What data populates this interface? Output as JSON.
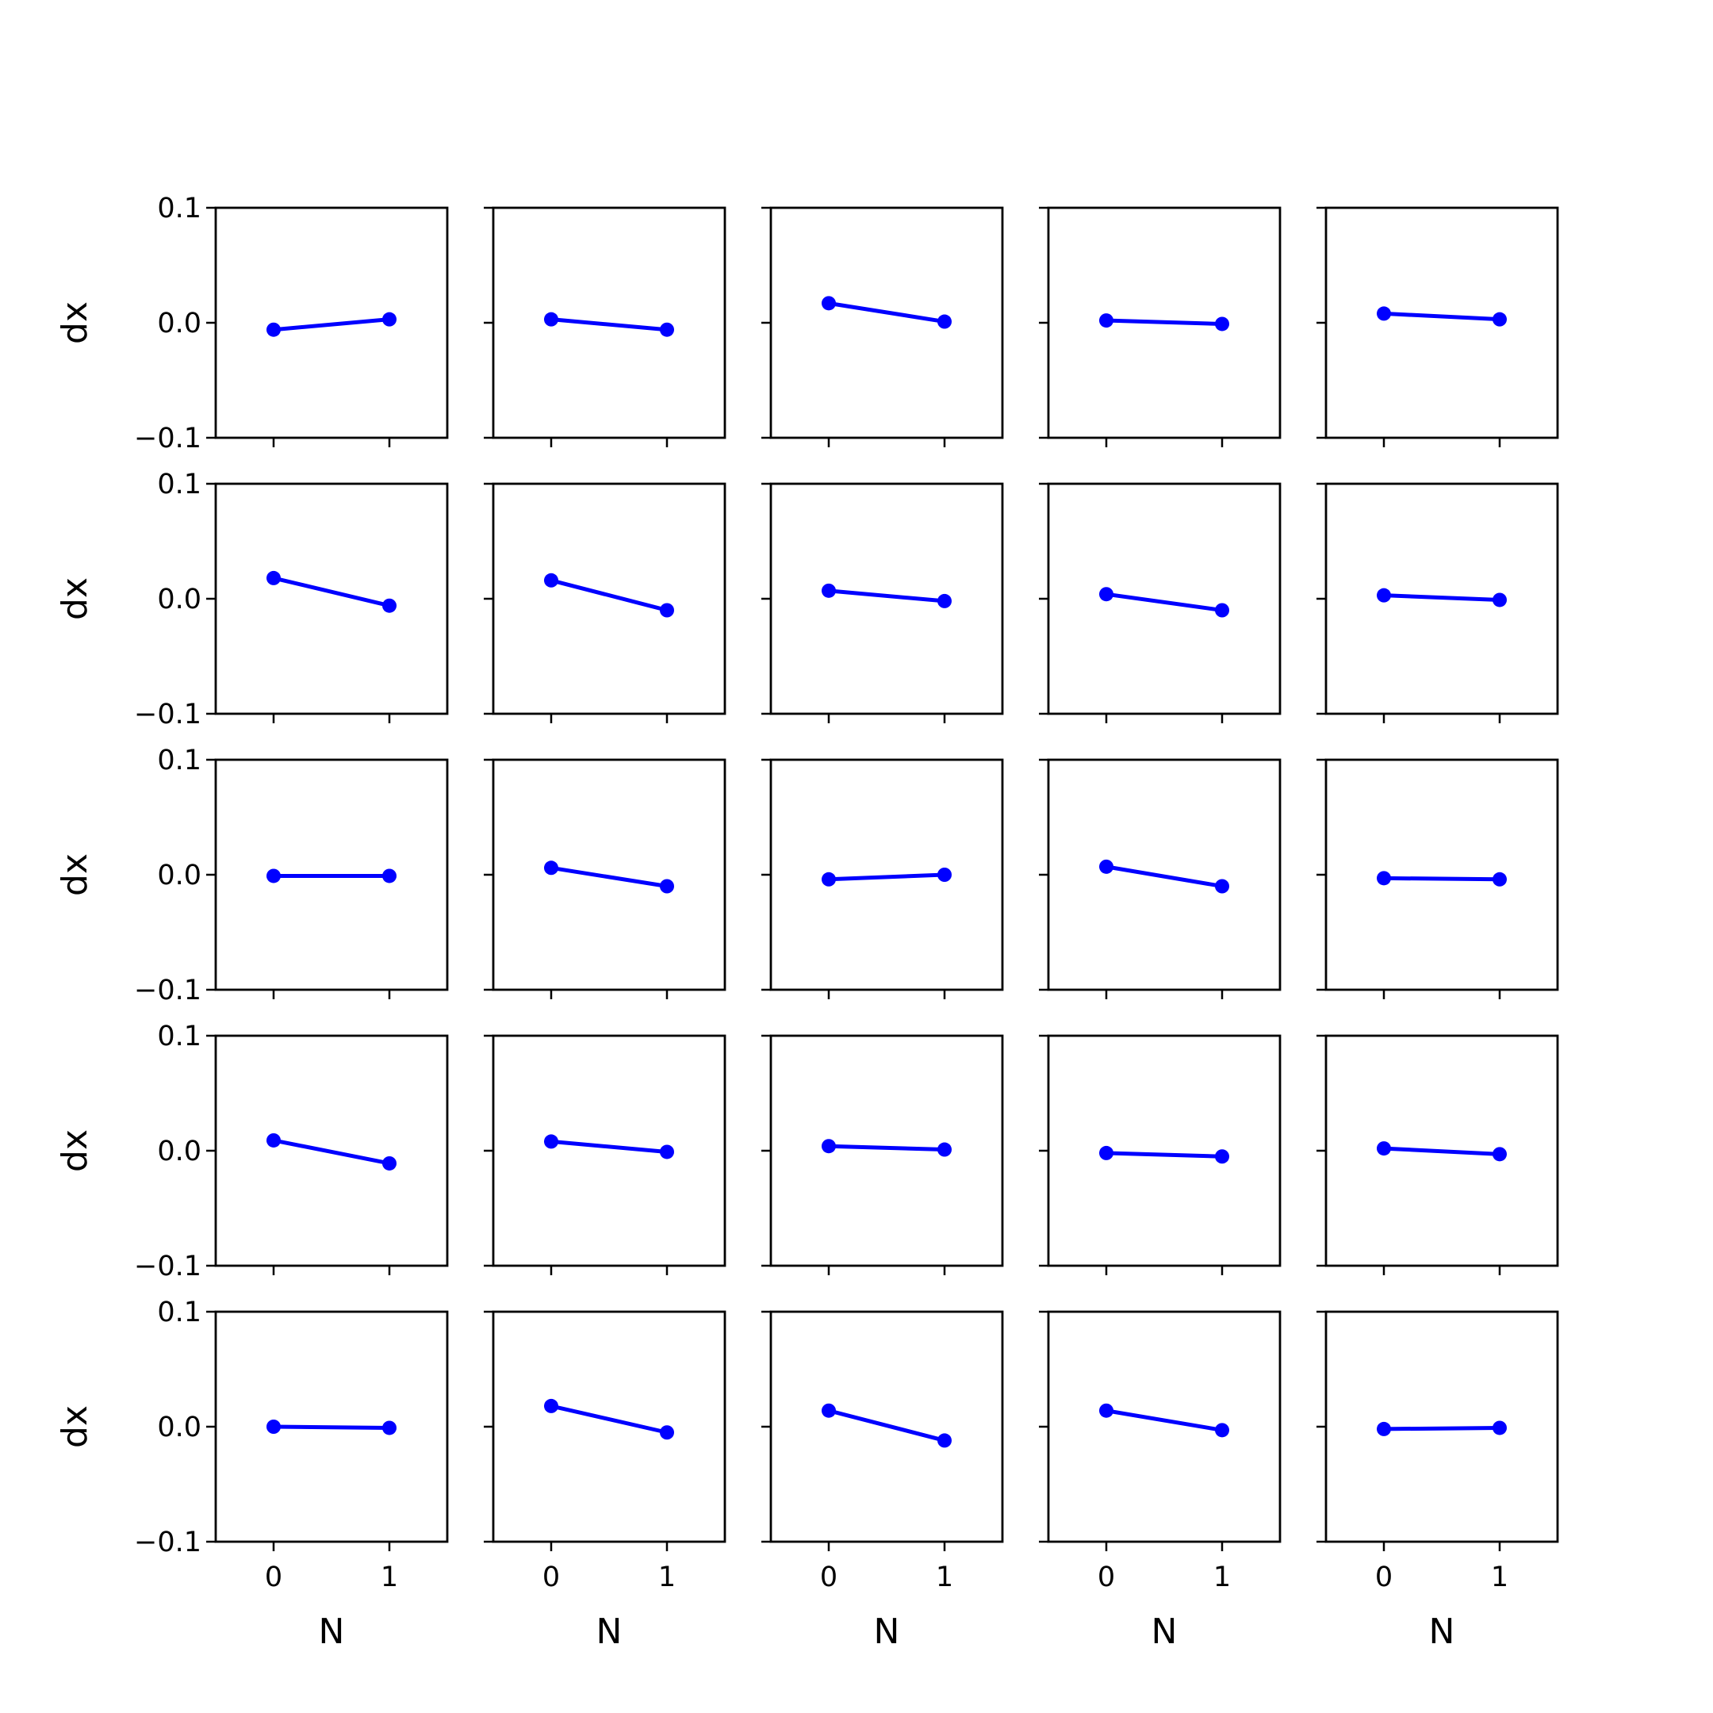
{
  "chart_data": {
    "type": "line",
    "layout": "5x5 small multiples",
    "x_ticks": [
      0,
      1
    ],
    "y_ticks": [
      -0.1,
      0.0,
      0.1
    ],
    "y_tick_labels": [
      "−0.1",
      "0.0",
      "0.1"
    ],
    "xlim": [
      -0.5,
      1.5
    ],
    "ylim": [
      -0.1,
      0.1
    ],
    "xlabel": "N",
    "ylabel": "dx",
    "grid": false,
    "line_color": "#0000ff",
    "marker": "circle",
    "x": [
      0,
      1
    ],
    "panels": [
      [
        [
          -0.006,
          0.003
        ],
        [
          0.003,
          -0.006
        ],
        [
          0.017,
          0.001
        ],
        [
          0.002,
          -0.001
        ],
        [
          0.008,
          0.003
        ]
      ],
      [
        [
          0.018,
          -0.006
        ],
        [
          0.016,
          -0.01
        ],
        [
          0.007,
          -0.002
        ],
        [
          0.004,
          -0.01
        ],
        [
          0.003,
          -0.001
        ]
      ],
      [
        [
          -0.001,
          -0.001
        ],
        [
          0.006,
          -0.01
        ],
        [
          -0.004,
          0.0
        ],
        [
          0.007,
          -0.01
        ],
        [
          -0.003,
          -0.004
        ]
      ],
      [
        [
          0.009,
          -0.011
        ],
        [
          0.008,
          -0.001
        ],
        [
          0.004,
          0.001
        ],
        [
          -0.002,
          -0.005
        ],
        [
          0.002,
          -0.003
        ]
      ],
      [
        [
          0.0,
          -0.001
        ],
        [
          0.018,
          -0.005
        ],
        [
          0.014,
          -0.012
        ],
        [
          0.014,
          -0.003
        ],
        [
          -0.002,
          -0.001
        ]
      ]
    ]
  }
}
